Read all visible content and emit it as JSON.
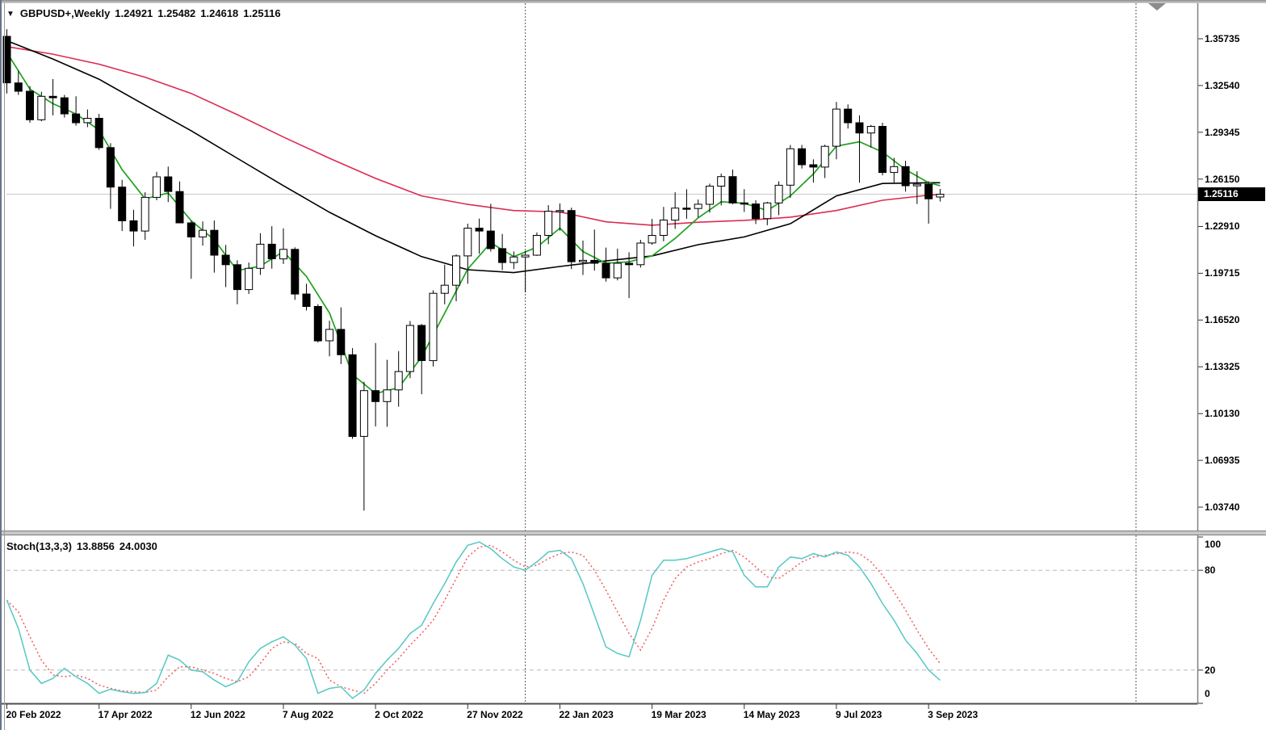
{
  "header": {
    "dropdown_icon": "▼",
    "symbol_label": "GBPUSD+,Weekly",
    "open": "1.24921",
    "high": "1.25482",
    "low": "1.24618",
    "close": "1.25116"
  },
  "indicator_header": {
    "label": "Stoch(13,3,3)",
    "main_value": "13.8856",
    "signal_value": "24.0030"
  },
  "price_axis": {
    "labels": [
      "1.35735",
      "1.32540",
      "1.29345",
      "1.26150",
      "1.22910",
      "1.19715",
      "1.16520",
      "1.13325",
      "1.10130",
      "1.06935",
      "1.03740"
    ],
    "current_price_tag": "1.25116"
  },
  "stoch_axis": {
    "labels": [
      "100",
      "80",
      "20",
      "0"
    ],
    "values": [
      100,
      80,
      20,
      0
    ]
  },
  "time_axis": {
    "ticks": [
      {
        "label": "20 Feb 2022",
        "index": 0
      },
      {
        "label": "17 Apr 2022",
        "index": 8
      },
      {
        "label": "12 Jun 2022",
        "index": 16
      },
      {
        "label": "7 Aug 2022",
        "index": 24
      },
      {
        "label": "2 Oct 2022",
        "index": 32
      },
      {
        "label": "27 Nov 2022",
        "index": 40
      },
      {
        "label": "22 Jan 2023",
        "index": 48
      },
      {
        "label": "19 Mar 2023",
        "index": 56
      },
      {
        "label": "14 May 2023",
        "index": 64
      },
      {
        "label": "9 Jul 2023",
        "index": 72
      },
      {
        "label": "3 Sep 2023",
        "index": 80
      }
    ]
  },
  "colors": {
    "up_candle": "#ffffff",
    "down_candle": "#000000",
    "candle_border": "#000000",
    "ma_green": "#1da11d",
    "ma_black": "#000000",
    "ma_red": "#dc2b52",
    "stoch_main": "#55c8c4",
    "stoch_signal": "#f25b5b",
    "current_price_line": "#c9c9c9",
    "price_tag_bg": "#000000",
    "price_tag_text": "#ffffff",
    "year_separator": "#5a5a5a",
    "level_dash": "#b8b8b8",
    "border": "#808080",
    "tick": "#333333"
  },
  "chart_data": {
    "type": "candlestick",
    "symbol": "GBPUSD+",
    "timeframe": "Weekly",
    "start_week": "20 Feb 2022",
    "week_step_days": 7,
    "price_range_visible": [
      1.0374,
      1.35735
    ],
    "year_separator_indices": [
      45,
      98
    ],
    "candles_ohlc": [
      [
        1.359,
        1.3639,
        1.32,
        1.3272
      ],
      [
        1.3272,
        1.3355,
        1.319,
        1.3215
      ],
      [
        1.3215,
        1.325,
        1.3,
        1.302
      ],
      [
        1.302,
        1.3211,
        1.301,
        1.318
      ],
      [
        1.318,
        1.3298,
        1.305,
        1.317
      ],
      [
        1.317,
        1.319,
        1.3035,
        1.306
      ],
      [
        1.306,
        1.3181,
        1.298,
        1.3
      ],
      [
        1.3,
        1.309,
        1.297,
        1.303
      ],
      [
        1.303,
        1.306,
        1.2815,
        1.283
      ],
      [
        1.283,
        1.286,
        1.2412,
        1.256
      ],
      [
        1.256,
        1.261,
        1.226,
        1.233
      ],
      [
        1.233,
        1.2405,
        1.2155,
        1.226
      ],
      [
        1.226,
        1.2525,
        1.22,
        1.249
      ],
      [
        1.249,
        1.2665,
        1.247,
        1.263
      ],
      [
        1.263,
        1.27,
        1.2458,
        1.253
      ],
      [
        1.253,
        1.2599,
        1.243,
        1.2316
      ],
      [
        1.2316,
        1.233,
        1.1934,
        1.222
      ],
      [
        1.222,
        1.2325,
        1.216,
        1.2265
      ],
      [
        1.2265,
        1.2332,
        1.1976,
        1.2095
      ],
      [
        1.2095,
        1.2165,
        1.1877,
        1.203
      ],
      [
        1.203,
        1.206,
        1.176,
        1.186
      ],
      [
        1.186,
        1.2045,
        1.183,
        1.2005
      ],
      [
        1.2005,
        1.2245,
        1.196,
        1.217
      ],
      [
        1.217,
        1.2293,
        1.2003,
        1.207
      ],
      [
        1.207,
        1.2278,
        1.2035,
        1.2135
      ],
      [
        1.2135,
        1.2149,
        1.179,
        1.183
      ],
      [
        1.183,
        1.19,
        1.1717,
        1.1745
      ],
      [
        1.1745,
        1.176,
        1.1499,
        1.151
      ],
      [
        1.151,
        1.1648,
        1.1404,
        1.1588
      ],
      [
        1.1588,
        1.1738,
        1.1351,
        1.1415
      ],
      [
        1.1415,
        1.146,
        1.084,
        1.0857
      ],
      [
        1.0857,
        1.123,
        1.035,
        1.117
      ],
      [
        1.117,
        1.1495,
        1.0925,
        1.1095
      ],
      [
        1.1095,
        1.138,
        1.0923,
        1.1175
      ],
      [
        1.1175,
        1.144,
        1.106,
        1.13
      ],
      [
        1.13,
        1.1645,
        1.1255,
        1.1615
      ],
      [
        1.1615,
        1.1625,
        1.1145,
        1.1375
      ],
      [
        1.1375,
        1.1855,
        1.1335,
        1.1835
      ],
      [
        1.1835,
        1.203,
        1.176,
        1.189
      ],
      [
        1.189,
        1.21,
        1.178,
        1.209
      ],
      [
        1.209,
        1.231,
        1.19,
        1.228
      ],
      [
        1.228,
        1.2345,
        1.2105,
        1.226
      ],
      [
        1.226,
        1.2446,
        1.212,
        1.214
      ],
      [
        1.214,
        1.224,
        1.1993,
        1.2045
      ],
      [
        1.2045,
        1.212,
        1.2,
        1.2083
      ],
      [
        1.2083,
        1.2125,
        1.1841,
        1.2095
      ],
      [
        1.2095,
        1.225,
        1.209,
        1.223
      ],
      [
        1.223,
        1.2437,
        1.217,
        1.2395
      ],
      [
        1.2395,
        1.2448,
        1.2263,
        1.24
      ],
      [
        1.24,
        1.242,
        1.2,
        1.205
      ],
      [
        1.205,
        1.2195,
        1.196,
        1.206
      ],
      [
        1.206,
        1.227,
        1.199,
        1.204
      ],
      [
        1.204,
        1.2147,
        1.1915,
        1.194
      ],
      [
        1.194,
        1.214,
        1.1923,
        1.204
      ],
      [
        1.204,
        1.2115,
        1.1802,
        1.203
      ],
      [
        1.203,
        1.22,
        1.201,
        1.2178
      ],
      [
        1.2178,
        1.2343,
        1.2167,
        1.223
      ],
      [
        1.223,
        1.2425,
        1.219,
        1.2335
      ],
      [
        1.2335,
        1.2525,
        1.2275,
        1.2417
      ],
      [
        1.2417,
        1.2546,
        1.2344,
        1.2414
      ],
      [
        1.2414,
        1.2475,
        1.2354,
        1.2443
      ],
      [
        1.2443,
        1.2584,
        1.2386,
        1.2567
      ],
      [
        1.2567,
        1.2652,
        1.2435,
        1.2632
      ],
      [
        1.2632,
        1.268,
        1.2443,
        1.2452
      ],
      [
        1.2452,
        1.2546,
        1.2391,
        1.2445
      ],
      [
        1.2445,
        1.247,
        1.2308,
        1.2345
      ],
      [
        1.2345,
        1.246,
        1.23,
        1.2452
      ],
      [
        1.2452,
        1.26,
        1.2368,
        1.2573
      ],
      [
        1.2573,
        1.2848,
        1.2486,
        1.2822
      ],
      [
        1.2822,
        1.2848,
        1.2687,
        1.2713
      ],
      [
        1.2713,
        1.275,
        1.2591,
        1.2697
      ],
      [
        1.2697,
        1.285,
        1.2622,
        1.2839
      ],
      [
        1.2839,
        1.3142,
        1.275,
        1.3093
      ],
      [
        1.3093,
        1.3125,
        1.296,
        1.3
      ],
      [
        1.3,
        1.305,
        1.259,
        1.293
      ],
      [
        1.293,
        1.2985,
        1.283,
        1.2975
      ],
      [
        1.2975,
        1.3,
        1.264,
        1.266
      ],
      [
        1.266,
        1.276,
        1.259,
        1.27
      ],
      [
        1.27,
        1.274,
        1.2529,
        1.2569
      ],
      [
        1.2569,
        1.2668,
        1.2445,
        1.258
      ],
      [
        1.258,
        1.26,
        1.2311,
        1.248
      ],
      [
        1.24921,
        1.25482,
        1.24618,
        1.25116
      ]
    ],
    "ma_green": {
      "indices": [
        0,
        2,
        4,
        6,
        8,
        10,
        12,
        14,
        16,
        18,
        20,
        22,
        24,
        26,
        28,
        30,
        32,
        34,
        36,
        38,
        40,
        42,
        44,
        46,
        48,
        50,
        52,
        54,
        56,
        58,
        60,
        62,
        64,
        66,
        68,
        70,
        72,
        74,
        76,
        78,
        80,
        81
      ],
      "values": [
        1.348,
        1.323,
        1.313,
        1.306,
        1.295,
        1.268,
        1.248,
        1.252,
        1.233,
        1.22,
        1.199,
        1.202,
        1.212,
        1.195,
        1.17,
        1.128,
        1.115,
        1.119,
        1.14,
        1.17,
        1.2,
        1.218,
        1.2085,
        1.215,
        1.228,
        1.212,
        1.204,
        1.205,
        1.209,
        1.221,
        1.235,
        1.246,
        1.245,
        1.24,
        1.25,
        1.265,
        1.284,
        1.287,
        1.28,
        1.268,
        1.259,
        1.257
      ]
    },
    "ma_black": {
      "indices": [
        0,
        4,
        8,
        12,
        16,
        20,
        24,
        28,
        32,
        36,
        40,
        44,
        48,
        52,
        56,
        60,
        64,
        68,
        72,
        76,
        80,
        81
      ],
      "values": [
        1.356,
        1.3435,
        1.3297,
        1.312,
        1.2945,
        1.2757,
        1.257,
        1.2388,
        1.2228,
        1.2085,
        1.1996,
        1.1976,
        1.2018,
        1.2056,
        1.209,
        1.2167,
        1.222,
        1.231,
        1.25,
        1.2585,
        1.259,
        1.259
      ]
    },
    "ma_red": {
      "indices": [
        0,
        4,
        8,
        12,
        16,
        20,
        24,
        28,
        32,
        36,
        40,
        44,
        48,
        52,
        56,
        60,
        64,
        68,
        72,
        76,
        80,
        81
      ],
      "values": [
        1.352,
        1.3468,
        1.34,
        1.3311,
        1.32,
        1.3055,
        1.2902,
        1.2757,
        1.262,
        1.25,
        1.2442,
        1.24,
        1.239,
        1.2323,
        1.23,
        1.232,
        1.2333,
        1.2355,
        1.24,
        1.247,
        1.2505,
        1.251
      ]
    },
    "stochastic": {
      "params": [
        13,
        3,
        3
      ],
      "range": [
        0,
        100
      ],
      "level_lines": [
        80,
        20
      ],
      "main": [
        62,
        45,
        20,
        12,
        15,
        21,
        16,
        12,
        6,
        8.5,
        7,
        6,
        6.5,
        12,
        29,
        26,
        20,
        19,
        14,
        10,
        13,
        25,
        33,
        37,
        40,
        35,
        27,
        6,
        9,
        10,
        3,
        8,
        18,
        26,
        33,
        42,
        47,
        60,
        72,
        85,
        95,
        97,
        93,
        87,
        82,
        80,
        85,
        91,
        92,
        87,
        72,
        53,
        34,
        30,
        28,
        50,
        77,
        86,
        86,
        87,
        89,
        91,
        93,
        91,
        77,
        70,
        70,
        82,
        88,
        87,
        90,
        88,
        91,
        89,
        82,
        72,
        60,
        50,
        38,
        30,
        20,
        13.8856
      ],
      "signal": [
        62,
        55,
        40,
        26,
        17,
        16,
        17,
        15,
        11,
        9,
        7.5,
        7,
        6.5,
        8,
        16,
        22,
        22,
        20,
        18,
        15,
        13,
        16,
        24,
        33,
        37,
        36,
        30,
        27,
        14,
        10,
        8,
        6,
        12,
        20,
        27,
        35,
        42,
        50,
        62,
        75,
        88,
        94,
        95,
        91,
        86,
        82,
        83,
        87,
        90,
        91,
        89,
        80,
        68,
        55,
        42,
        32,
        45,
        62,
        75,
        82,
        85,
        87,
        90,
        92,
        88,
        82,
        76,
        75,
        80,
        85,
        88,
        89,
        90,
        91,
        90,
        85,
        77,
        67,
        56,
        44,
        33,
        24.003
      ]
    }
  }
}
